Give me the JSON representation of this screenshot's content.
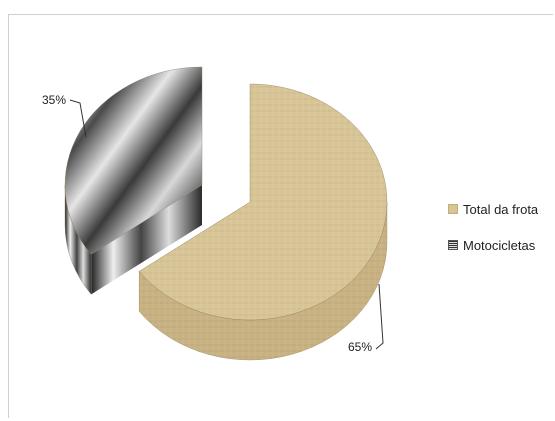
{
  "chart_data": {
    "type": "pie",
    "title": "",
    "categories": [
      "Total da frota",
      "Motocicletas"
    ],
    "values": [
      65,
      35
    ],
    "data_labels": [
      "65%",
      "35%"
    ],
    "exploded": true,
    "style": "3d",
    "legend_position": "right"
  },
  "colors": {
    "total_da_frota": "#d7c497",
    "motocicletas": "#8a8a8a"
  }
}
